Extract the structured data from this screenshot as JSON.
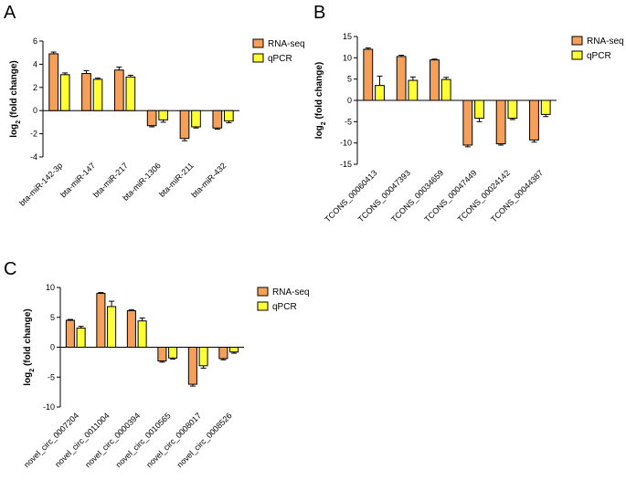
{
  "colors": {
    "rna_seq": "#F5A05A",
    "qpcr": "#FFFF33",
    "axis": "#000000"
  },
  "chart_data": [
    {
      "type": "bar",
      "panel": "A",
      "ylabel_base": "log",
      "ylabel_sub": "2",
      "ylabel_rest": " (fold change)",
      "yticks": [
        -4,
        -2,
        0,
        2,
        4,
        6
      ],
      "ylim": [
        -4,
        6
      ],
      "categories": [
        "bta-miR-142-3p",
        "bta-miR-147",
        "bta-miR-217",
        "bta-miR-1306",
        "bta-miR-211",
        "bta-miR-432"
      ],
      "series": [
        {
          "name": "RNA-seq",
          "values": [
            4.9,
            3.2,
            3.5,
            -1.3,
            -2.4,
            -1.5
          ],
          "errors": [
            0.15,
            0.25,
            0.25,
            0.1,
            0.2,
            0.1
          ]
        },
        {
          "name": "qPCR",
          "values": [
            3.1,
            2.7,
            2.9,
            -0.8,
            -1.4,
            -0.9
          ],
          "errors": [
            0.15,
            0.1,
            0.15,
            0.2,
            0.1,
            0.15
          ]
        }
      ]
    },
    {
      "type": "bar",
      "panel": "B",
      "ylabel_base": "log",
      "ylabel_sub": "2",
      "ylabel_rest": " (fold change)",
      "yticks": [
        -15,
        -10,
        -5,
        0,
        5,
        10,
        15
      ],
      "ylim": [
        -15,
        15
      ],
      "categories": [
        "TCONS_00060413",
        "TCONS_00047393",
        "TCONS_00034659",
        "TCONS_00047449",
        "TCONS_00024142",
        "TCONS_00044387"
      ],
      "series": [
        {
          "name": "RNA-seq",
          "values": [
            12.0,
            10.3,
            9.5,
            -10.5,
            -10.2,
            -9.3
          ],
          "errors": [
            0.3,
            0.3,
            0.2,
            0.4,
            0.3,
            0.5
          ]
        },
        {
          "name": "qPCR",
          "values": [
            3.5,
            4.7,
            4.9,
            -4.2,
            -4.2,
            -3.3
          ],
          "errors": [
            2.2,
            0.8,
            0.5,
            0.8,
            0.3,
            0.5
          ]
        }
      ]
    },
    {
      "type": "bar",
      "panel": "C",
      "ylabel_base": "log",
      "ylabel_sub": "2",
      "ylabel_rest": " (fold change)",
      "yticks": [
        -10,
        -5,
        0,
        5,
        10
      ],
      "ylim": [
        -10,
        10
      ],
      "categories": [
        "novel_circ_0007204",
        "novel_circ_0011004",
        "novel_circ_0000394",
        "novel_circ_0010565",
        "novel_circ_0008017",
        "novel_circ_0008526"
      ],
      "series": [
        {
          "name": "RNA-seq",
          "values": [
            4.5,
            9.0,
            6.1,
            -2.3,
            -6.2,
            -1.9
          ],
          "errors": [
            0.15,
            0.15,
            0.15,
            0.2,
            0.3,
            0.2
          ]
        },
        {
          "name": "qPCR",
          "values": [
            3.2,
            6.8,
            4.4,
            -1.8,
            -3.1,
            -0.8
          ],
          "errors": [
            0.3,
            0.9,
            0.5,
            0.2,
            0.4,
            0.2
          ]
        }
      ]
    }
  ]
}
